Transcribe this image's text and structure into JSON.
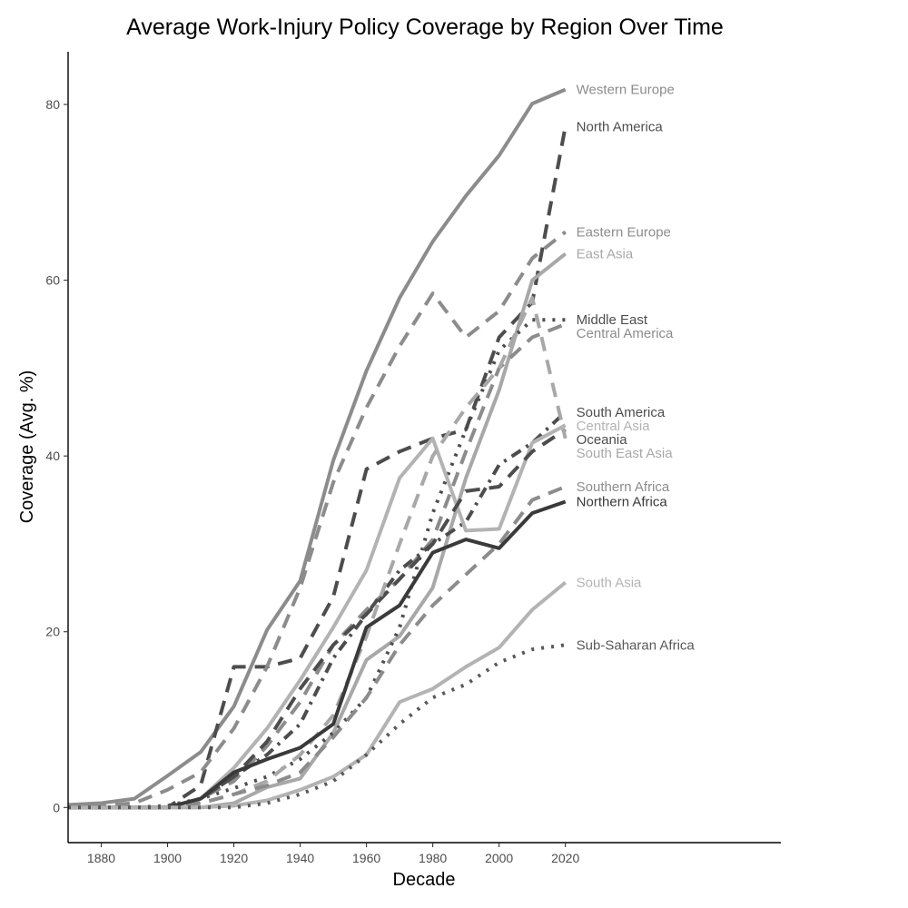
{
  "chart_data": {
    "type": "line",
    "title": "Average Work-Injury Policy Coverage by Region Over Time",
    "xlabel": "Decade",
    "ylabel": "Coverage (Avg. %)",
    "xlim": [
      1870,
      2085
    ],
    "ylim": [
      -4,
      86
    ],
    "xticks": [
      1880,
      1900,
      1920,
      1940,
      1960,
      1980,
      2000,
      2020
    ],
    "yticks": [
      0,
      20,
      40,
      60,
      80
    ],
    "grid": false,
    "legend": "direct labels at line ends",
    "x": [
      1870,
      1880,
      1890,
      1900,
      1910,
      1920,
      1930,
      1940,
      1950,
      1960,
      1970,
      1980,
      1990,
      2000,
      2010,
      2020
    ],
    "series": [
      {
        "name": "Western Europe",
        "color": "#8c8c8c",
        "dash": "solid",
        "values": [
          0.3,
          0.5,
          1.0,
          3.6,
          6.3,
          11.5,
          20.2,
          25.8,
          39.5,
          49.7,
          58.0,
          64.4,
          69.6,
          74.2,
          80.1,
          81.7
        ]
      },
      {
        "name": "North America",
        "color": "#4d4d4d",
        "dash": "dashed",
        "values": [
          0.0,
          0.0,
          0.0,
          0.0,
          2.5,
          16.0,
          16.0,
          17.0,
          24.0,
          38.5,
          40.5,
          42.0,
          43.0,
          53.5,
          57.5,
          77.5
        ]
      },
      {
        "name": "Eastern Europe",
        "color": "#8c8c8c",
        "dash": "dashed",
        "values": [
          0.0,
          0.2,
          0.5,
          2.0,
          4.0,
          9.0,
          16.0,
          25.0,
          37.0,
          45.5,
          52.5,
          58.5,
          53.5,
          56.5,
          62.5,
          65.5
        ]
      },
      {
        "name": "East Asia",
        "color": "#a8a8a8",
        "dash": "solid",
        "values": [
          0.0,
          0.0,
          0.0,
          0.0,
          0.0,
          0.5,
          2.3,
          3.3,
          8.5,
          16.8,
          19.5,
          25.0,
          37.5,
          47.5,
          60.0,
          63.0
        ]
      },
      {
        "name": "Middle East",
        "color": "#4d4d4d",
        "dash": "dotted",
        "values": [
          0.0,
          0.0,
          0.0,
          0.2,
          1.0,
          2.2,
          3.5,
          5.5,
          8.5,
          12.5,
          20.5,
          33.5,
          43.0,
          52.0,
          55.5,
          55.5
        ]
      },
      {
        "name": "Central America",
        "color": "#8c8c8c",
        "dash": "dashed",
        "values": [
          0.0,
          0.0,
          0.0,
          0.0,
          1.0,
          3.0,
          7.0,
          12.0,
          18.5,
          22.5,
          26.0,
          30.5,
          40.5,
          50.0,
          53.5,
          55.0
        ]
      },
      {
        "name": "South America",
        "color": "#4d4d4d",
        "dash": "dashdot",
        "values": [
          0.0,
          0.0,
          0.0,
          0.0,
          1.0,
          3.5,
          6.0,
          9.5,
          17.0,
          22.0,
          27.0,
          30.0,
          32.5,
          39.0,
          41.5,
          45.0
        ]
      },
      {
        "name": "Central Asia",
        "color": "#b3b3b3",
        "dash": "solid",
        "values": [
          0.0,
          0.0,
          0.0,
          0.0,
          1.0,
          4.5,
          9.0,
          14.5,
          20.5,
          27.0,
          37.5,
          42.0,
          31.5,
          31.7,
          41.5,
          43.5
        ]
      },
      {
        "name": "Oceania",
        "color": "#4d4d4d",
        "dash": "dashed",
        "values": [
          0.0,
          0.0,
          0.0,
          0.0,
          1.0,
          3.5,
          7.5,
          13.5,
          18.5,
          22.0,
          26.0,
          30.0,
          36.0,
          36.5,
          40.5,
          43.0
        ]
      },
      {
        "name": "South East Asia",
        "color": "#a8a8a8",
        "dash": "dashed",
        "values": [
          0.0,
          0.0,
          0.0,
          0.0,
          0.5,
          1.5,
          3.0,
          6.0,
          10.5,
          19.5,
          30.0,
          40.0,
          45.5,
          50.0,
          58.0,
          42.0
        ]
      },
      {
        "name": "Southern Africa",
        "color": "#8c8c8c",
        "dash": "dashed",
        "values": [
          0.0,
          0.0,
          0.0,
          0.0,
          0.5,
          1.5,
          2.5,
          4.0,
          8.0,
          12.5,
          18.5,
          23.0,
          26.5,
          30.0,
          35.0,
          36.5
        ]
      },
      {
        "name": "Northern Africa",
        "color": "#3a3a3a",
        "dash": "solid",
        "values": [
          0.0,
          0.0,
          0.0,
          0.0,
          1.0,
          4.0,
          5.5,
          6.8,
          9.5,
          20.5,
          23.0,
          29.0,
          30.5,
          29.5,
          33.5,
          34.8
        ]
      },
      {
        "name": "South Asia",
        "color": "#b3b3b3",
        "dash": "solid",
        "values": [
          0.0,
          0.0,
          0.0,
          0.0,
          0.0,
          0.2,
          0.8,
          2.0,
          3.5,
          6.0,
          12.0,
          13.5,
          16.0,
          18.2,
          22.5,
          25.6
        ]
      },
      {
        "name": "Sub-Saharan Africa",
        "color": "#595959",
        "dash": "dotted",
        "values": [
          0.0,
          0.0,
          0.0,
          0.0,
          0.0,
          0.0,
          0.5,
          1.5,
          3.0,
          6.0,
          9.5,
          12.5,
          14.0,
          16.5,
          18.0,
          18.5
        ]
      }
    ]
  }
}
